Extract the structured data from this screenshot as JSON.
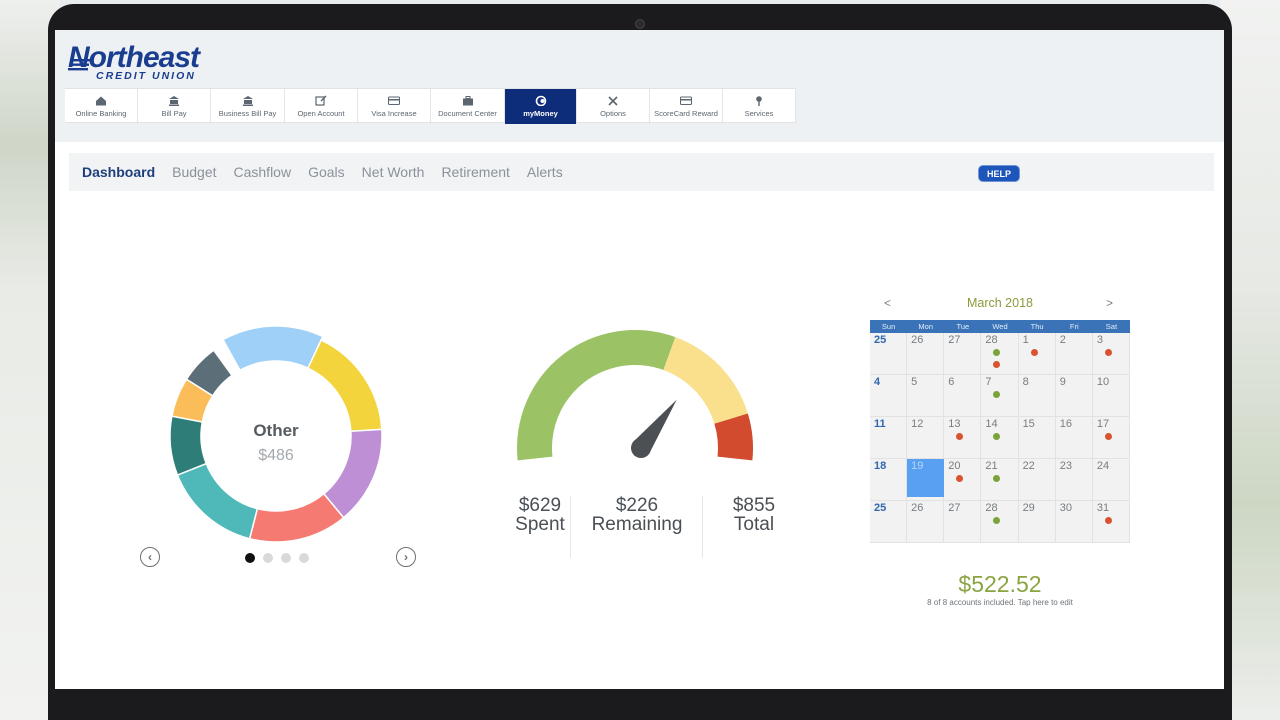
{
  "brand": {
    "name": "Northeast",
    "sub": "CREDIT UNION",
    "color": "#1a3d8f"
  },
  "topnav": [
    {
      "label": "Online Banking",
      "icon": "home-icon"
    },
    {
      "label": "Bill Pay",
      "icon": "bank-icon"
    },
    {
      "label": "Business Bill Pay",
      "icon": "bank-icon"
    },
    {
      "label": "Open Account",
      "icon": "edit-icon"
    },
    {
      "label": "Visa Increase",
      "icon": "credit-card-icon"
    },
    {
      "label": "Document Center",
      "icon": "briefcase-icon"
    },
    {
      "label": "myMoney",
      "icon": "mymoney-icon",
      "active": true
    },
    {
      "label": "Options",
      "icon": "tools-icon"
    },
    {
      "label": "ScoreCard Reward",
      "icon": "credit-card-icon"
    },
    {
      "label": "Services",
      "icon": "pin-icon"
    }
  ],
  "subnav": [
    "Dashboard",
    "Budget",
    "Cashflow",
    "Goals",
    "Net Worth",
    "Retirement",
    "Alerts"
  ],
  "subnav_active": "Dashboard",
  "help_label": "HELP",
  "donut": {
    "center_label": "Other",
    "center_value": "$486",
    "colors": [
      "#9fd1f8",
      "#f4d43c",
      "#bf8fd6",
      "#f57a72",
      "#4fb8b8",
      "#2e7d79",
      "#fbbd5a",
      "#5c6e78"
    ],
    "shares": [
      0.15,
      0.17,
      0.15,
      0.15,
      0.15,
      0.09,
      0.06,
      0.06
    ],
    "prev_label": "‹",
    "next_label": "›",
    "page_count": 4,
    "active_page": 1
  },
  "gauge": {
    "spent": "$629",
    "spent_label": "Spent",
    "remaining": "$226",
    "remaining_label": "Remaining",
    "total": "$855",
    "total_label": "Total",
    "spent_fraction": 0.736,
    "colors": {
      "green": "#9bc265",
      "yellow": "#fadf8c",
      "red": "#d24b2e",
      "needle": "#4c5054"
    }
  },
  "calendar": {
    "prev": "<",
    "next": ">",
    "title": "March 2018",
    "weekdays": [
      "Sun",
      "Mon",
      "Tue",
      "Wed",
      "Thu",
      "Fri",
      "Sat"
    ],
    "weeks": [
      [
        {
          "d": "25",
          "first": true
        },
        {
          "d": "26"
        },
        {
          "d": "27"
        },
        {
          "d": "28",
          "ev": [
            "g",
            "r"
          ]
        },
        {
          "d": "1",
          "ev": [
            "r"
          ]
        },
        {
          "d": "2"
        },
        {
          "d": "3",
          "ev": [
            "r"
          ]
        }
      ],
      [
        {
          "d": "4",
          "first": true
        },
        {
          "d": "5"
        },
        {
          "d": "6"
        },
        {
          "d": "7",
          "ev": [
            "g"
          ]
        },
        {
          "d": "8"
        },
        {
          "d": "9"
        },
        {
          "d": "10"
        }
      ],
      [
        {
          "d": "11",
          "first": true
        },
        {
          "d": "12"
        },
        {
          "d": "13",
          "ev": [
            "r"
          ]
        },
        {
          "d": "14",
          "ev": [
            "g"
          ]
        },
        {
          "d": "15"
        },
        {
          "d": "16"
        },
        {
          "d": "17",
          "ev": [
            "r"
          ]
        }
      ],
      [
        {
          "d": "18",
          "first": true
        },
        {
          "d": "19",
          "today": true
        },
        {
          "d": "20",
          "ev": [
            "r"
          ]
        },
        {
          "d": "21",
          "ev": [
            "g"
          ]
        },
        {
          "d": "22"
        },
        {
          "d": "23"
        },
        {
          "d": "24"
        }
      ],
      [
        {
          "d": "25",
          "first": true
        },
        {
          "d": "26"
        },
        {
          "d": "27"
        },
        {
          "d": "28",
          "ev": [
            "g"
          ]
        },
        {
          "d": "29"
        },
        {
          "d": "30"
        },
        {
          "d": "31",
          "ev": [
            "r"
          ]
        }
      ]
    ],
    "total": "$522.52",
    "note": "8 of 8 accounts included. Tap here to edit"
  }
}
